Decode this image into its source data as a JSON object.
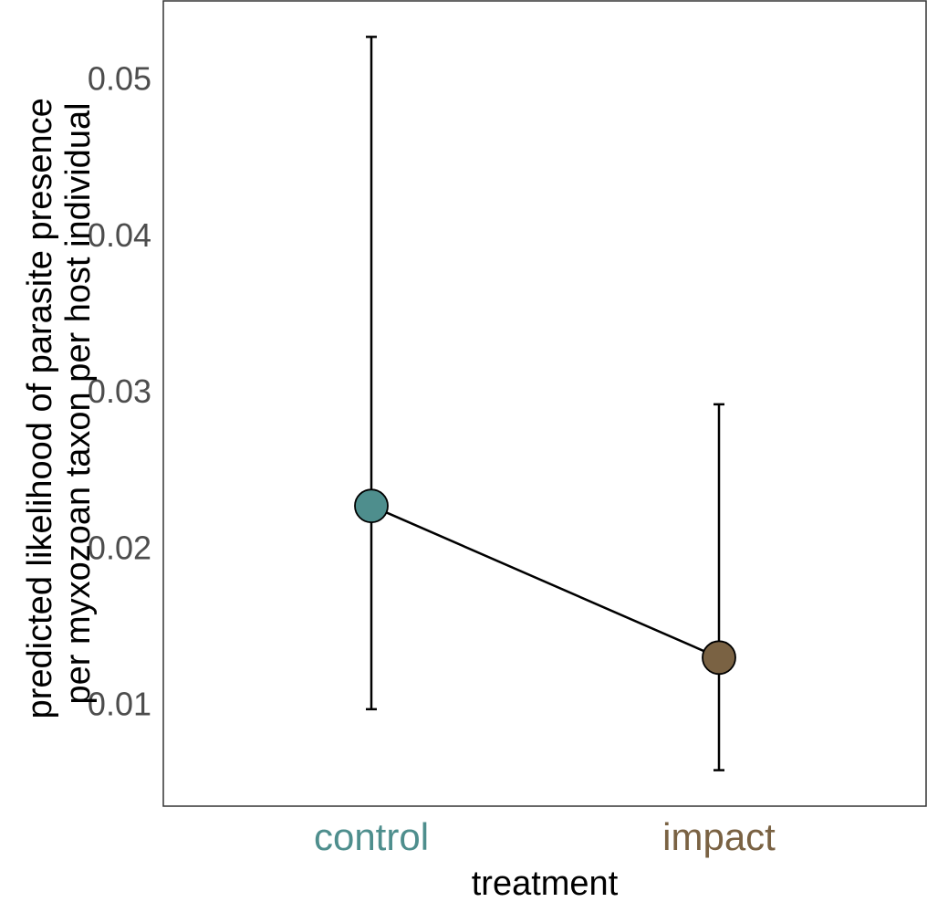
{
  "chart_data": {
    "type": "scatter",
    "title": "",
    "xlabel": "treatment",
    "ylabel_lines": [
      "predicted likelihood of parasite presence",
      "per myxozoan taxon per host individual"
    ],
    "categories": [
      "control",
      "impact"
    ],
    "category_colors": [
      "#4E8E8D",
      "#7A6243"
    ],
    "points": [
      {
        "category": "control",
        "y": 0.0227,
        "ymin": 0.0097,
        "ymax": 0.0527
      },
      {
        "category": "impact",
        "y": 0.013,
        "ymin": 0.0058,
        "ymax": 0.0292
      }
    ],
    "connecting_line": true,
    "y_ticks": [
      "0.01",
      "0.02",
      "0.03",
      "0.04",
      "0.05"
    ],
    "ylim": [
      0.0035,
      0.055
    ],
    "grid": false,
    "legend": "none"
  }
}
